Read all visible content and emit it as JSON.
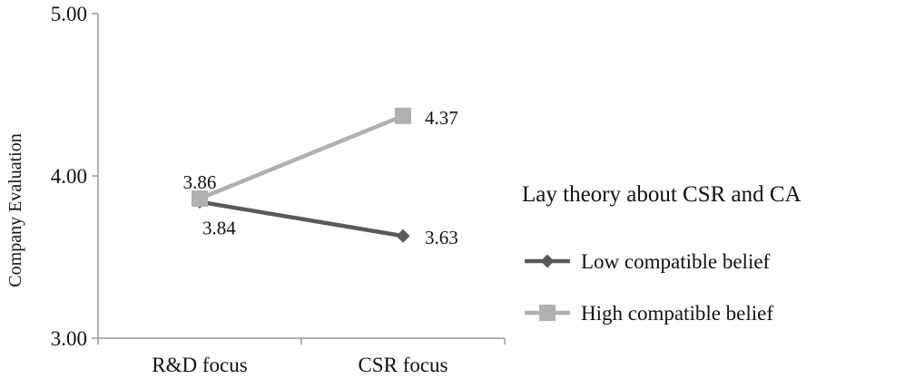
{
  "chart_data": {
    "type": "line",
    "categories": [
      "R&D focus",
      "CSR focus"
    ],
    "ylabel": "Company Evaluation",
    "ylim": [
      3.0,
      5.0
    ],
    "yticks": [
      "3.00",
      "4.00",
      "5.00"
    ],
    "grid": false,
    "legend": {
      "title": "Lay theory about CSR and CA",
      "placement": "right"
    },
    "series": [
      {
        "name": "Low compatible belief",
        "values": [
          3.84,
          3.63
        ],
        "labels": [
          "3.84",
          "3.63"
        ],
        "color": "#5a5a5a",
        "marker": "diamond-icon"
      },
      {
        "name": "High compatible belief",
        "values": [
          3.86,
          4.37
        ],
        "labels": [
          "3.86",
          "4.37"
        ],
        "color": "#b0b0b0",
        "marker": "square-icon"
      }
    ]
  }
}
